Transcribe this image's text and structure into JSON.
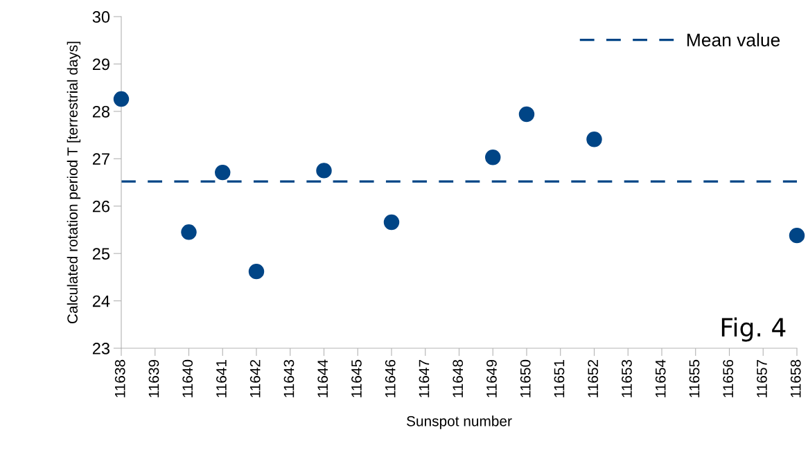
{
  "chart_data": {
    "type": "scatter",
    "xlabel": "Sunspot number",
    "ylabel": "Calculated rotation period T [terrestrial days]",
    "x": [
      11638,
      11640,
      11641,
      11642,
      11644,
      11646,
      11649,
      11650,
      11652,
      11658
    ],
    "series": [
      {
        "color": "#004586",
        "values": [
          28.26,
          25.45,
          26.71,
          24.62,
          26.75,
          25.66,
          27.03,
          27.94,
          27.41,
          25.38
        ]
      },
      {
        "type": "line",
        "name": "Mean value",
        "color": "#004586",
        "x": [
          11638,
          11658
        ],
        "values": [
          26.52,
          26.52
        ],
        "marker": "none",
        "line_style": "dashed"
      }
    ],
    "marker": "circle",
    "xlim": [
      11638,
      11658
    ],
    "xticks": [
      11638,
      11639,
      11640,
      11641,
      11642,
      11643,
      11644,
      11645,
      11646,
      11647,
      11648,
      11649,
      11650,
      11651,
      11652,
      11653,
      11654,
      11655,
      11656,
      11657,
      11658
    ],
    "ylim": [
      23,
      30
    ],
    "yticks": [
      23,
      24,
      25,
      26,
      27,
      28,
      29,
      30
    ],
    "legend": "top right",
    "grid": false,
    "annotations": [
      "Fig. 4"
    ]
  }
}
